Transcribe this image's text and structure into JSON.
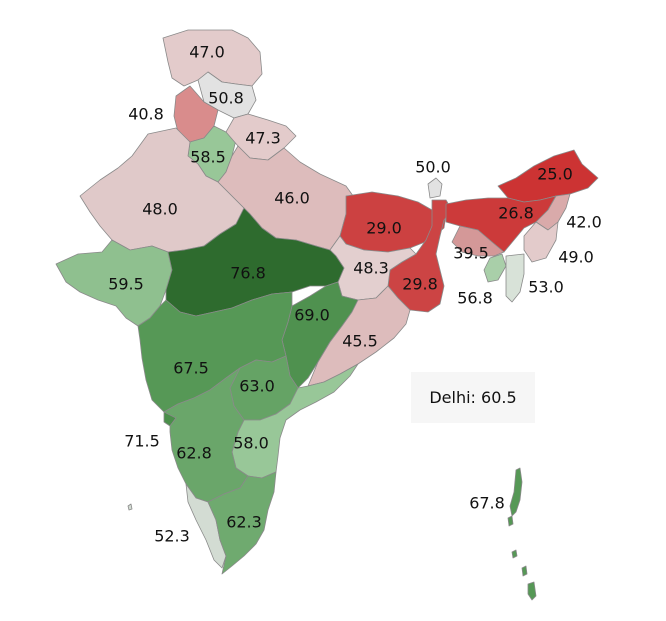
{
  "map": {
    "regions": [
      {
        "id": "jammu-kashmir",
        "value": "47.0",
        "color": "#e3cbcb"
      },
      {
        "id": "himachal-pradesh",
        "value": "50.8",
        "color": "#e2e2e2"
      },
      {
        "id": "punjab",
        "value": "40.8",
        "color": "#d98c8c"
      },
      {
        "id": "haryana",
        "value": "58.5",
        "color": "#98c798"
      },
      {
        "id": "uttarakhand",
        "value": "47.3",
        "color": "#e3cbcb"
      },
      {
        "id": "rajasthan",
        "value": "48.0",
        "color": "#e0c9c9"
      },
      {
        "id": "uttar-pradesh",
        "value": "46.0",
        "color": "#ddbcbc"
      },
      {
        "id": "sikkim",
        "value": "50.0",
        "color": "#e2e2e2"
      },
      {
        "id": "arunachal-pradesh",
        "value": "25.0",
        "color": "#cc3333"
      },
      {
        "id": "bihar",
        "value": "29.0",
        "color": "#cc4141"
      },
      {
        "id": "assam",
        "value": "26.8",
        "color": "#cc3a3a"
      },
      {
        "id": "nagaland",
        "value": "42.0",
        "color": "#d9aaaa"
      },
      {
        "id": "meghalaya",
        "value": "39.5",
        "color": "#d49898"
      },
      {
        "id": "manipur",
        "value": "49.0",
        "color": "#e3cbcb"
      },
      {
        "id": "gujarat",
        "value": "59.5",
        "color": "#8fc08f"
      },
      {
        "id": "madhya-pradesh",
        "value": "76.8",
        "color": "#2e6b2e"
      },
      {
        "id": "jharkhand",
        "value": "48.3",
        "color": "#e3cfcf"
      },
      {
        "id": "west-bengal",
        "value": "29.8",
        "color": "#cc4444"
      },
      {
        "id": "tripura",
        "value": "56.8",
        "color": "#a9cfa9"
      },
      {
        "id": "mizoram",
        "value": "53.0",
        "color": "#d8e2d8"
      },
      {
        "id": "chhattisgarh",
        "value": "69.0",
        "color": "#4f914f"
      },
      {
        "id": "odisha",
        "value": "45.5",
        "color": "#ddbcbc"
      },
      {
        "id": "maharashtra",
        "value": "67.5",
        "color": "#569856"
      },
      {
        "id": "telangana",
        "value": "63.0",
        "color": "#65a365"
      },
      {
        "id": "goa",
        "value": "71.5",
        "color": "#4a8f4a"
      },
      {
        "id": "karnataka",
        "value": "62.8",
        "color": "#6aa66a"
      },
      {
        "id": "andhra-pradesh",
        "value": "58.0",
        "color": "#98c798"
      },
      {
        "id": "kerala",
        "value": "52.3",
        "color": "#d3dcd3"
      },
      {
        "id": "tamil-nadu",
        "value": "62.3",
        "color": "#6faa6f"
      },
      {
        "id": "andaman-nicobar",
        "value": "67.8",
        "color": "#569856"
      }
    ]
  },
  "delhi": {
    "text": "Delhi: 60.5"
  }
}
